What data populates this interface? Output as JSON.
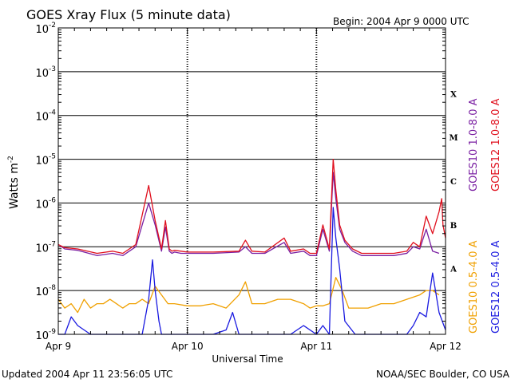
{
  "chart_data": {
    "type": "line",
    "title": "GOES Xray Flux (5 minute data)",
    "begin_label": "Begin:  2004 Apr 9 0000 UTC",
    "xlabel": "Universal Time",
    "ylabel": "Watts m",
    "ylabel_superscript": "-2",
    "y_scale": "log",
    "ylim_exponents": [
      -9,
      -2
    ],
    "y_ticks": [
      {
        "base": "10",
        "exp": "-9"
      },
      {
        "base": "10",
        "exp": "-8"
      },
      {
        "base": "10",
        "exp": "-7"
      },
      {
        "base": "10",
        "exp": "-6"
      },
      {
        "base": "10",
        "exp": "-5"
      },
      {
        "base": "10",
        "exp": "-4"
      },
      {
        "base": "10",
        "exp": "-3"
      },
      {
        "base": "10",
        "exp": "-2"
      }
    ],
    "x_ticks": [
      "Apr 9",
      "Apr 10",
      "Apr 11",
      "Apr 12"
    ],
    "flare_classes": [
      "A",
      "B",
      "C",
      "M",
      "X"
    ],
    "grid": true,
    "legend_position": "right",
    "series": [
      {
        "name": "GOES10 1.0-8.0 A",
        "color": "#7a1fa2",
        "x": [
          0,
          0.05,
          0.15,
          0.3,
          0.42,
          0.5,
          0.6,
          0.7,
          0.75,
          0.8,
          0.83,
          0.86,
          0.88,
          0.9,
          0.95,
          1.0,
          1.05,
          1.2,
          1.4,
          1.45,
          1.5,
          1.6,
          1.75,
          1.8,
          1.9,
          1.95,
          2.0,
          2.05,
          2.1,
          2.13,
          2.15,
          2.18,
          2.22,
          2.28,
          2.35,
          2.45,
          2.6,
          2.7,
          2.75,
          2.8,
          2.85,
          2.9,
          2.95
        ],
        "y": [
          -6.95,
          -7.05,
          -7.08,
          -7.2,
          -7.15,
          -7.2,
          -7.0,
          -6.0,
          -6.5,
          -7.1,
          -6.55,
          -7.1,
          -7.15,
          -7.12,
          -7.15,
          -7.15,
          -7.15,
          -7.15,
          -7.12,
          -7.0,
          -7.15,
          -7.15,
          -6.9,
          -7.15,
          -7.1,
          -7.2,
          -7.2,
          -6.6,
          -7.1,
          -5.3,
          -5.9,
          -6.6,
          -6.9,
          -7.1,
          -7.2,
          -7.2,
          -7.2,
          -7.15,
          -7.0,
          -7.05,
          -6.6,
          -7.1,
          -7.15
        ]
      },
      {
        "name": "GOES12 1.0-8.0 A",
        "color": "#e0101e",
        "x": [
          0,
          0.05,
          0.15,
          0.3,
          0.42,
          0.5,
          0.6,
          0.7,
          0.75,
          0.8,
          0.83,
          0.86,
          0.88,
          0.9,
          0.95,
          1.0,
          1.05,
          1.2,
          1.4,
          1.45,
          1.5,
          1.6,
          1.75,
          1.8,
          1.9,
          1.95,
          2.0,
          2.05,
          2.1,
          2.13,
          2.15,
          2.18,
          2.22,
          2.28,
          2.35,
          2.45,
          2.6,
          2.7,
          2.75,
          2.8,
          2.85,
          2.9,
          2.95,
          2.97,
          2.98,
          3.0
        ],
        "y": [
          -6.95,
          -7.02,
          -7.05,
          -7.15,
          -7.1,
          -7.15,
          -6.95,
          -5.6,
          -6.4,
          -7.05,
          -6.4,
          -7.05,
          -7.1,
          -7.08,
          -7.1,
          -7.12,
          -7.12,
          -7.12,
          -7.1,
          -6.85,
          -7.1,
          -7.12,
          -6.8,
          -7.1,
          -7.05,
          -7.15,
          -7.15,
          -6.5,
          -7.05,
          -5.0,
          -5.7,
          -6.5,
          -6.85,
          -7.05,
          -7.15,
          -7.15,
          -7.15,
          -7.1,
          -6.9,
          -7.0,
          -6.3,
          -6.7,
          -6.2,
          -5.9,
          -6.5,
          -6.8
        ]
      },
      {
        "name": "GOES10 0.5-4.0 A",
        "color": "#f0a000",
        "x": [
          0,
          0.05,
          0.1,
          0.15,
          0.2,
          0.25,
          0.3,
          0.35,
          0.4,
          0.45,
          0.5,
          0.55,
          0.6,
          0.65,
          0.7,
          0.75,
          0.8,
          0.85,
          0.9,
          1.0,
          1.1,
          1.2,
          1.3,
          1.4,
          1.45,
          1.5,
          1.6,
          1.7,
          1.8,
          1.9,
          1.95,
          2.0,
          2.05,
          2.1,
          2.15,
          2.2,
          2.25,
          2.3,
          2.4,
          2.5,
          2.6,
          2.7,
          2.8,
          2.85,
          2.9,
          2.95
        ],
        "y": [
          -8.2,
          -8.4,
          -8.3,
          -8.5,
          -8.2,
          -8.4,
          -8.3,
          -8.3,
          -8.2,
          -8.3,
          -8.4,
          -8.3,
          -8.3,
          -8.2,
          -8.3,
          -7.9,
          -8.1,
          -8.3,
          -8.3,
          -8.35,
          -8.35,
          -8.3,
          -8.4,
          -8.1,
          -7.8,
          -8.3,
          -8.3,
          -8.2,
          -8.2,
          -8.3,
          -8.4,
          -8.35,
          -8.35,
          -8.3,
          -7.7,
          -8.0,
          -8.4,
          -8.4,
          -8.4,
          -8.3,
          -8.3,
          -8.2,
          -8.1,
          -8.0,
          -8.0,
          -8.1
        ]
      },
      {
        "name": "GOES12 0.5-4.0 A",
        "color": "#1a1ae0",
        "x": [
          0,
          0.05,
          0.1,
          0.15,
          0.2,
          0.25,
          0.3,
          0.35,
          0.4,
          0.5,
          0.6,
          0.65,
          0.7,
          0.73,
          0.75,
          0.78,
          0.8,
          0.85,
          0.9,
          1.0,
          1.1,
          1.2,
          1.3,
          1.35,
          1.4,
          1.5,
          1.6,
          1.7,
          1.8,
          1.9,
          2.0,
          2.05,
          2.1,
          2.13,
          2.15,
          2.18,
          2.22,
          2.3,
          2.4,
          2.5,
          2.6,
          2.7,
          2.75,
          2.8,
          2.85,
          2.9,
          2.95,
          3.0
        ],
        "y": [
          -9.0,
          -9.0,
          -8.6,
          -8.8,
          -8.9,
          -9.0,
          -9.0,
          -9.0,
          -9.0,
          -9.0,
          -9.0,
          -9.0,
          -8.2,
          -7.3,
          -8.0,
          -8.7,
          -9.0,
          -9.0,
          -9.0,
          -9.0,
          -9.0,
          -9.0,
          -8.9,
          -8.5,
          -9.0,
          -9.0,
          -9.0,
          -9.0,
          -9.0,
          -8.8,
          -9.0,
          -8.8,
          -9.0,
          -6.1,
          -6.8,
          -7.5,
          -8.7,
          -9.0,
          -9.0,
          -9.0,
          -9.0,
          -9.0,
          -8.8,
          -8.5,
          -8.6,
          -7.6,
          -8.5,
          -8.9
        ]
      }
    ]
  },
  "footer": {
    "updated": "Updated 2004 Apr 11 23:56:05 UTC",
    "credit": "NOAA/SEC Boulder, CO USA"
  }
}
